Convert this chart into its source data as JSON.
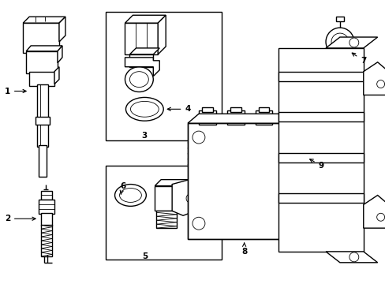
{
  "bg_color": "#ffffff",
  "lc": "#000000",
  "lw": 1.0,
  "tlw": 0.6
}
